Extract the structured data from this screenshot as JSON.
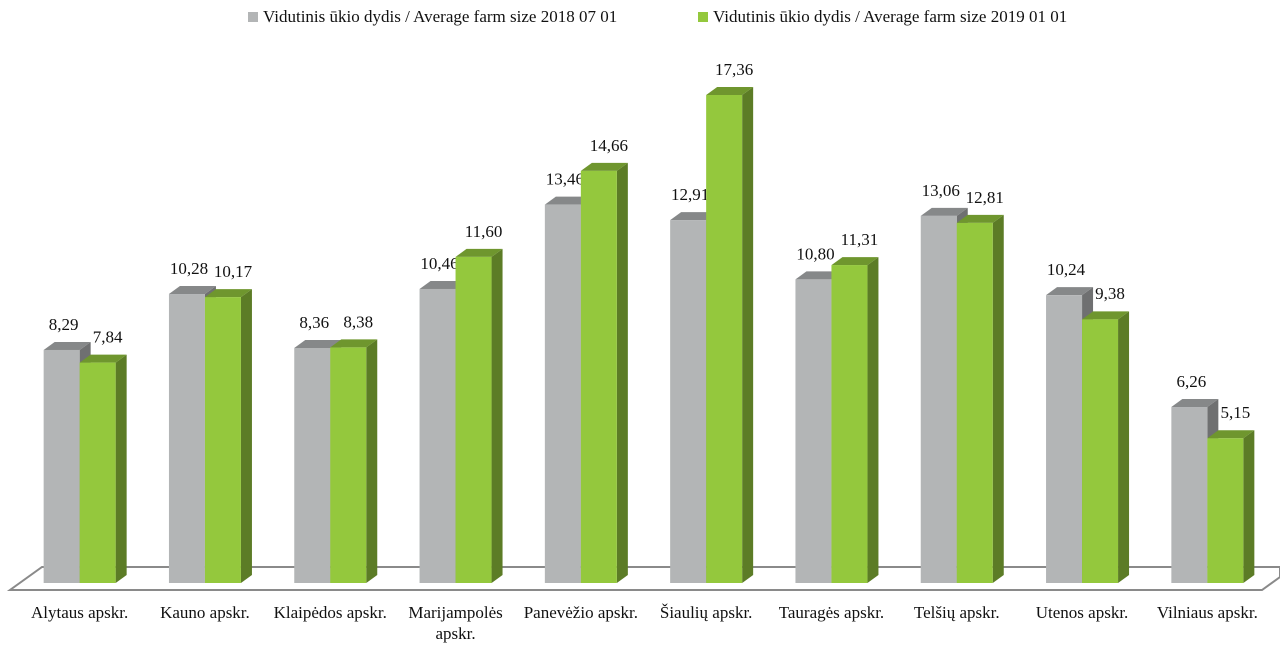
{
  "chart_data": {
    "type": "bar3d",
    "categories": [
      "Alytaus apskr.",
      "Kauno apskr.",
      "Klaipėdos apskr.",
      "Marijampolės apskr.",
      "Panevėžio apskr.",
      "Šiaulių apskr.",
      "Tauragės apskr.",
      "Telšių apskr.",
      "Utenos apskr.",
      "Vilniaus apskr."
    ],
    "series": [
      {
        "name": "Vidutinis ūkio dydis /  Average farm size 2018 07 01",
        "color": "#b3b5b6",
        "values": [
          8.29,
          10.28,
          8.36,
          10.46,
          13.46,
          12.91,
          10.8,
          13.06,
          10.24,
          6.26
        ],
        "value_labels": [
          "8,29",
          "10,28",
          "8,36",
          "10,46",
          "13,46",
          "12,91",
          "10,80",
          "13,06",
          "10,24",
          "6,26"
        ]
      },
      {
        "name": "Vidutinis ūkio dydis /  Average farm size 2019 01 01",
        "color": "#94c83d",
        "values": [
          7.84,
          10.17,
          8.38,
          11.6,
          14.66,
          17.36,
          11.31,
          12.81,
          9.38,
          5.15
        ],
        "value_labels": [
          "7,84",
          "10,17",
          "8,38",
          "11,60",
          "14,66",
          "17,36",
          "11,31",
          "12,81",
          "9,38",
          "5,15"
        ]
      }
    ],
    "legend": "top"
  }
}
